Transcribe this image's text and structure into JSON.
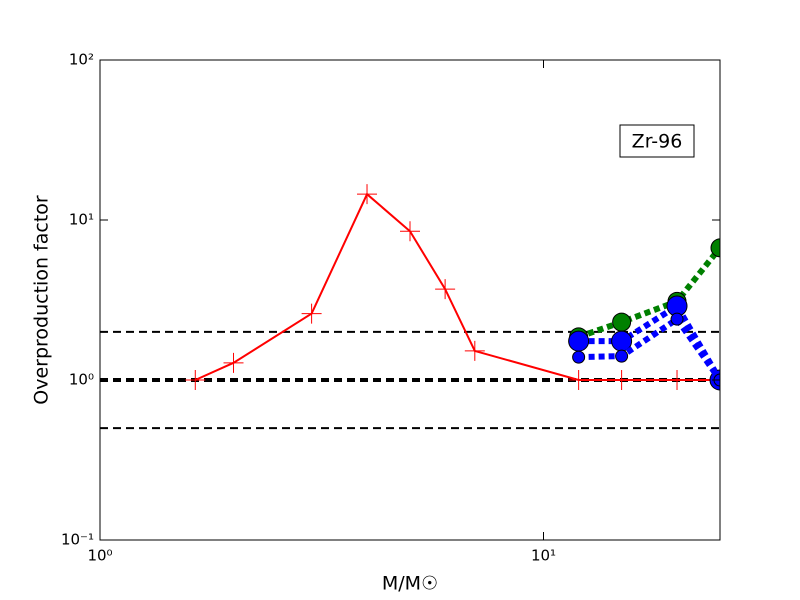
{
  "chart_data": {
    "type": "line",
    "xlabel": "M/M☉",
    "ylabel": "Overproduction factor",
    "annotation": "Zr-96",
    "log_x": true,
    "log_y": true,
    "xlim": [
      1,
      25
    ],
    "ylim": [
      0.1,
      100
    ],
    "xticks": [
      {
        "value": 1,
        "label": "10⁰"
      },
      {
        "value": 10,
        "label": "10¹"
      }
    ],
    "yticks": [
      {
        "value": 0.1,
        "label": "10⁻¹"
      },
      {
        "value": 1,
        "label": "10⁰"
      },
      {
        "value": 10,
        "label": "10¹"
      },
      {
        "value": 100,
        "label": "10²"
      }
    ],
    "hlines": [
      {
        "value": 2,
        "width": 2
      },
      {
        "value": 1,
        "width": 4
      },
      {
        "value": 0.5,
        "width": 2
      }
    ],
    "series": [
      {
        "color": "#ff0000",
        "marker": "plus",
        "dash": "solid",
        "width": 2,
        "x": [
          1.64,
          2,
          3,
          4,
          5,
          6,
          7,
          12,
          15,
          20,
          25
        ],
        "values": [
          1.0,
          1.28,
          2.6,
          14.5,
          8.5,
          3.7,
          1.52,
          1.0,
          1.0,
          1.0,
          1.0
        ]
      },
      {
        "color": "#008000",
        "marker": "circle",
        "dash": "dotted",
        "width": 6,
        "size": 9,
        "x": [
          12,
          15,
          20,
          25
        ],
        "values": [
          1.86,
          2.3,
          3.1,
          6.7
        ]
      },
      {
        "color": "#0000ff",
        "marker": "circle",
        "dash": "dotted",
        "width": 6,
        "size": 10,
        "x": [
          12,
          15,
          20,
          25
        ],
        "values": [
          1.75,
          1.75,
          2.9,
          1.0
        ]
      },
      {
        "color": "#0000ff",
        "marker": "circle",
        "dash": "dotted",
        "width": 6,
        "size": 6,
        "x": [
          12,
          15,
          20,
          25
        ],
        "values": [
          1.39,
          1.41,
          2.4,
          1.0
        ]
      }
    ]
  }
}
